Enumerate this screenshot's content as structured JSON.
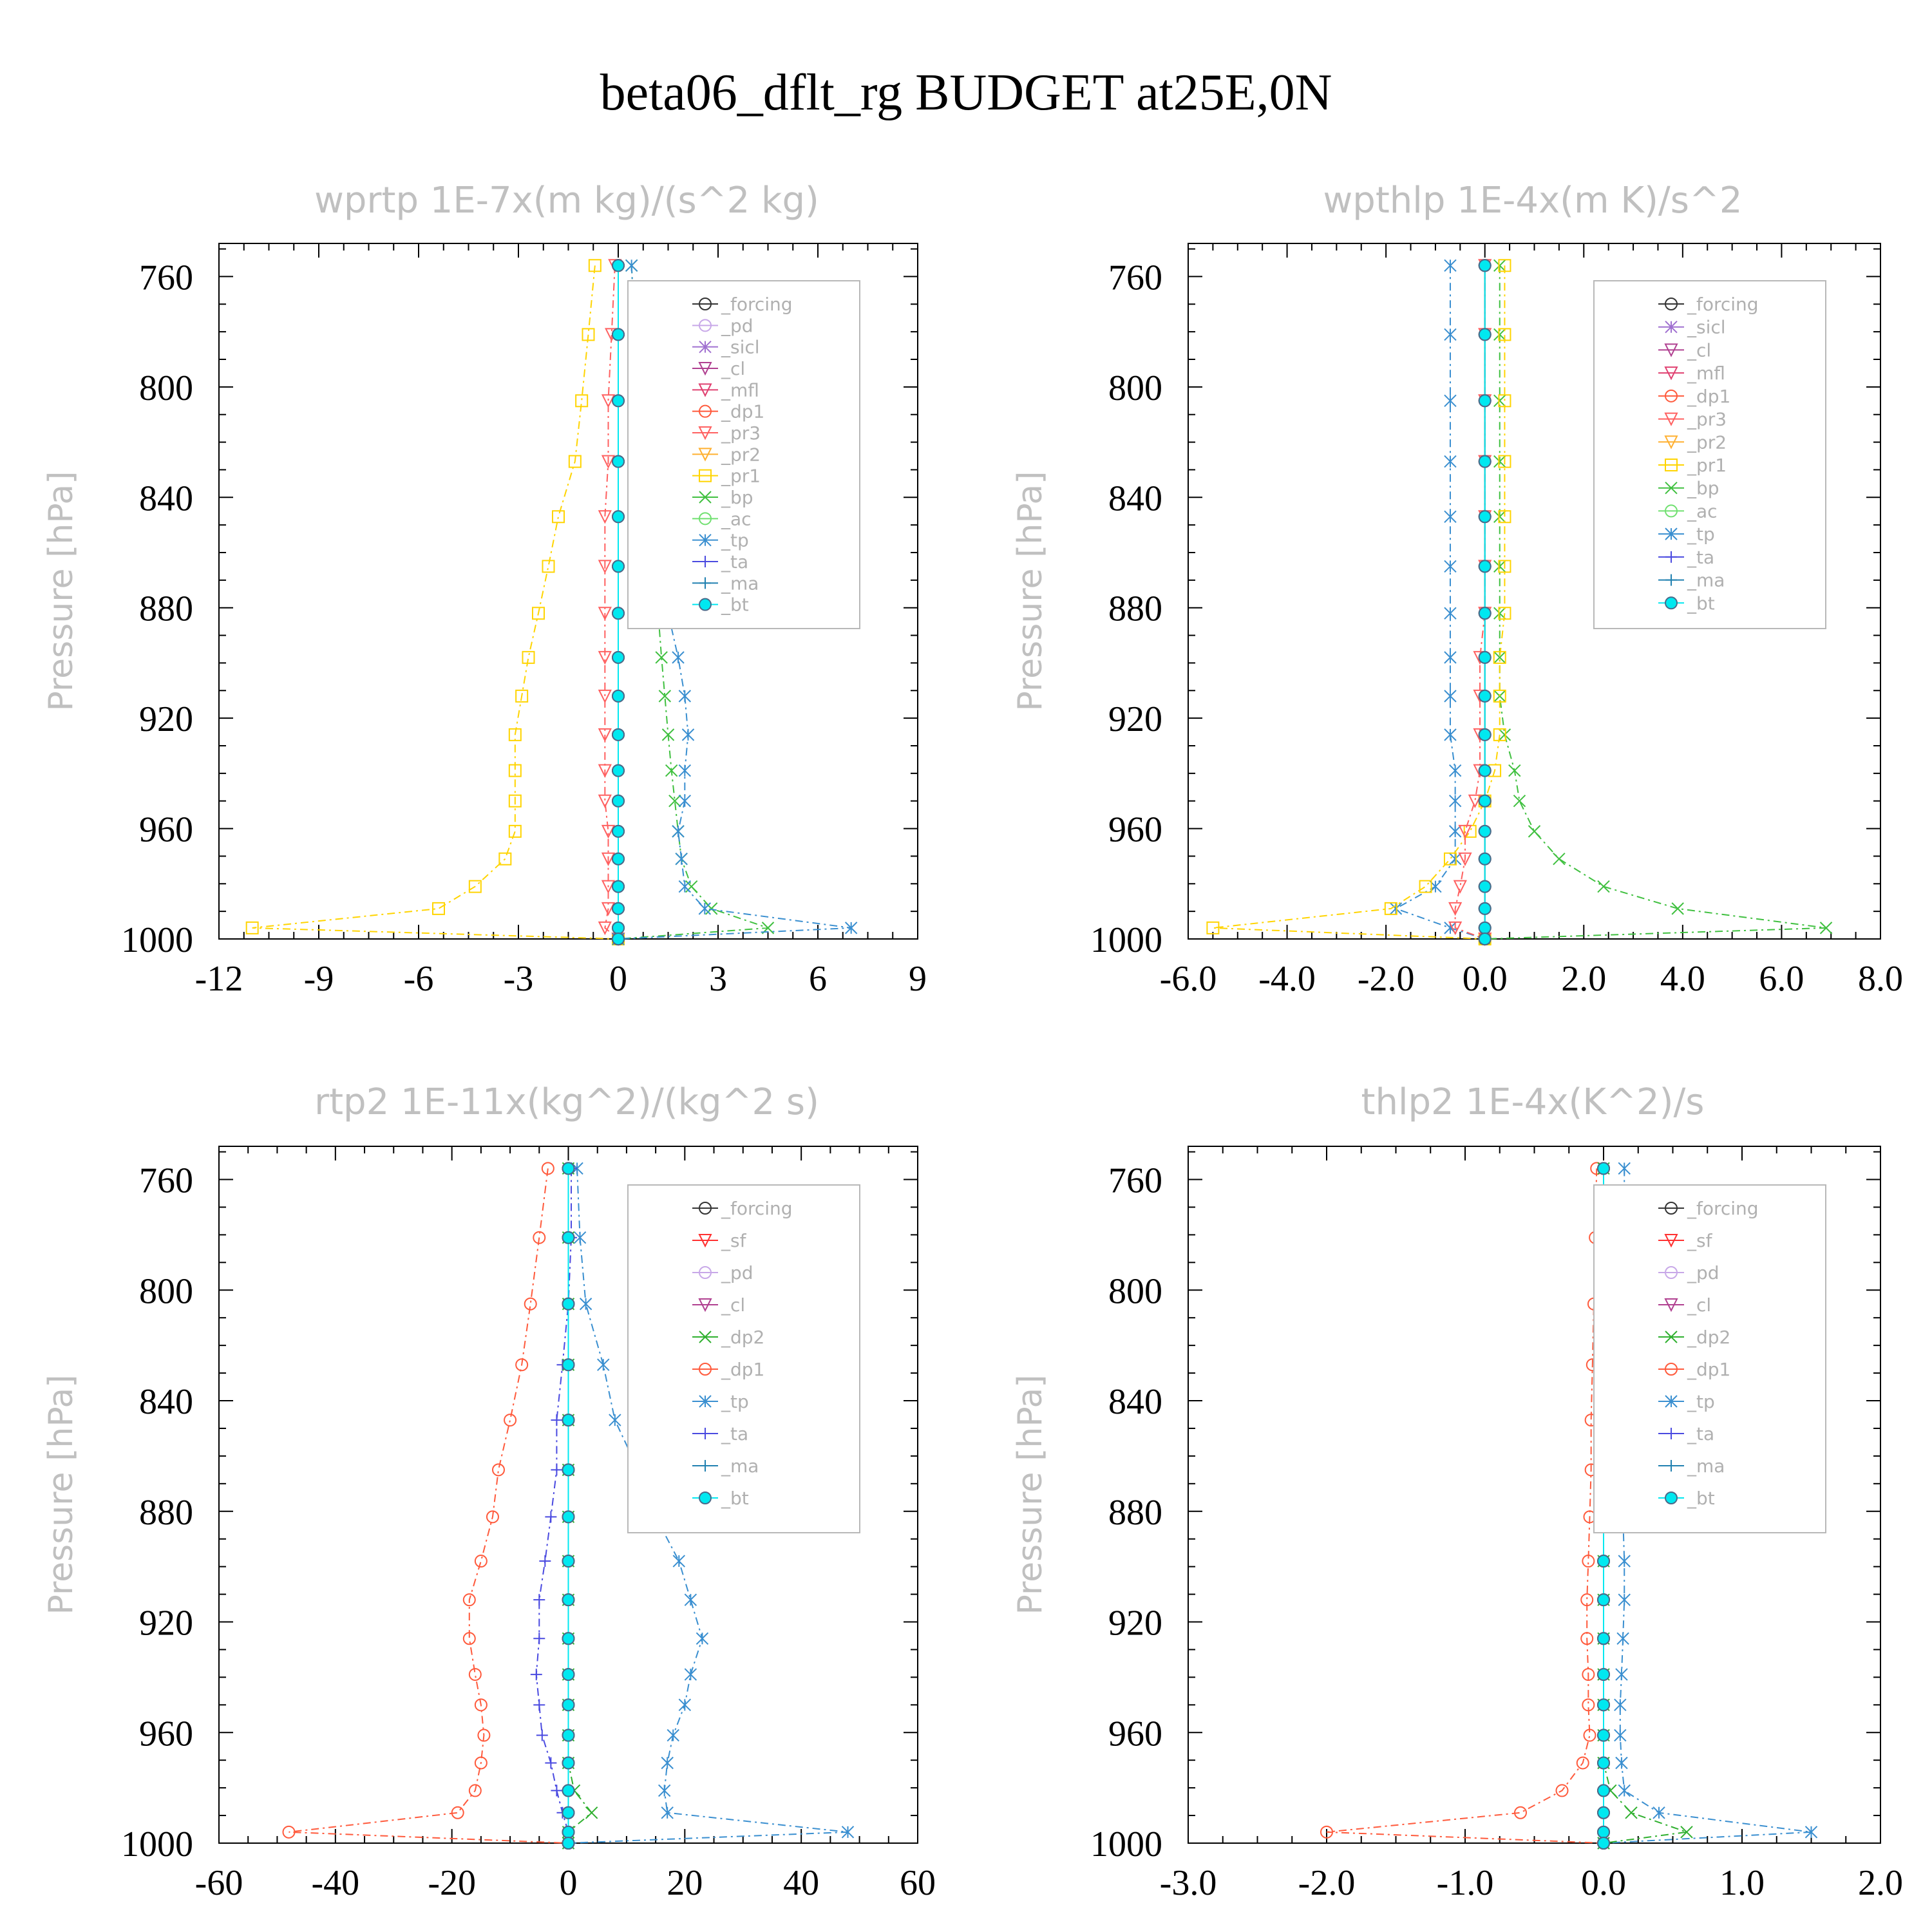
{
  "figure_title": "beta06_dflt_rg  BUDGET at25E,0N",
  "colors": {
    "_forcing": "#333333",
    "_pd": "#c8a8e8",
    "_sicl": "#a070d0",
    "_cl": "#b04090",
    "_mfl": "#e04070",
    "_dp1": "#ff5a3c",
    "_pr3": "#ff6060",
    "_pr2": "#ffb030",
    "_pr1": "#ffd400",
    "_bp": "#40c040",
    "_ac": "#70e070",
    "_tp": "#3a8fd0",
    "_ta": "#4a4ae0",
    "_ma": "#2080b0",
    "_bt": "#00e8f0",
    "_sf": "#ff3030",
    "_dp2": "#30b030",
    "axis": "#000000",
    "muted": "#c0c0c0"
  },
  "chart_data": [
    {
      "type": "line",
      "title": "wprtp   1E-7x(m kg)/(s^2 kg)",
      "ylabel": "Pressure [hPa]",
      "xlim": [
        -12,
        9
      ],
      "ylim": [
        1000,
        748
      ],
      "xticks": [
        "-12",
        "-9",
        "-6",
        "-3",
        "0",
        "3",
        "6",
        "9"
      ],
      "xtick_values": [
        -12,
        -9,
        -6,
        -3,
        0,
        3,
        6,
        9
      ],
      "yticks": [
        "760",
        "800",
        "840",
        "880",
        "920",
        "960",
        "1000"
      ],
      "yticks_values": [
        760,
        800,
        840,
        880,
        920,
        960,
        1000
      ],
      "legend": [
        "_forcing",
        "_pd",
        "_sicl",
        "_cl",
        "_mfl",
        "_dp1",
        "_pr3",
        "_pr2",
        "_pr1",
        "_bp",
        "_ac",
        "_tp",
        "_ta",
        "_ma",
        "_bt"
      ],
      "y": [
        756,
        781,
        805,
        827,
        847,
        865,
        882,
        898,
        912,
        926,
        939,
        950,
        961,
        971,
        981,
        989,
        996,
        1000
      ],
      "series": [
        {
          "name": "_pr1",
          "marker": "square",
          "values": [
            -0.7,
            -0.9,
            -1.1,
            -1.3,
            -1.8,
            -2.1,
            -2.4,
            -2.7,
            -2.9,
            -3.1,
            -3.1,
            -3.1,
            -3.1,
            -3.4,
            -4.3,
            -5.4,
            -11.0,
            0
          ]
        },
        {
          "name": "_pr3",
          "marker": "tri_down",
          "values": [
            -0.1,
            -0.2,
            -0.3,
            -0.3,
            -0.4,
            -0.4,
            -0.4,
            -0.4,
            -0.4,
            -0.4,
            -0.4,
            -0.4,
            -0.3,
            -0.3,
            -0.3,
            -0.3,
            -0.4,
            0
          ]
        },
        {
          "name": "_bp",
          "marker": "x",
          "values": [
            0.4,
            0.5,
            0.6,
            0.7,
            0.8,
            1.0,
            1.2,
            1.3,
            1.4,
            1.5,
            1.6,
            1.7,
            1.8,
            1.9,
            2.2,
            2.8,
            4.5,
            0
          ]
        },
        {
          "name": "_tp",
          "marker": "star",
          "values": [
            0.4,
            0.5,
            0.6,
            0.7,
            1.0,
            1.2,
            1.5,
            1.8,
            2.0,
            2.1,
            2.0,
            2.0,
            1.8,
            1.9,
            2.0,
            2.6,
            7.0,
            0
          ]
        },
        {
          "name": "_forcing",
          "marker": "circle",
          "values": [
            0,
            0,
            0,
            0,
            0,
            0,
            0,
            0,
            0,
            0,
            0,
            0,
            0,
            0,
            0,
            0,
            0,
            0
          ]
        },
        {
          "name": "_bt",
          "marker": "dot",
          "values": [
            0,
            0,
            0,
            0,
            0,
            0,
            0,
            0,
            0,
            0,
            0,
            0,
            0,
            0,
            0,
            0,
            0,
            0
          ]
        }
      ]
    },
    {
      "type": "line",
      "title": "wpthlp   1E-4x(m K)/s^2",
      "ylabel": "Pressure [hPa]",
      "xlim": [
        -6.0,
        8.0
      ],
      "ylim": [
        1000,
        748
      ],
      "xticks": [
        "-6.0",
        "-4.0",
        "-2.0",
        "0.0",
        "2.0",
        "4.0",
        "6.0",
        "8.0"
      ],
      "xtick_values": [
        -6,
        -4,
        -2,
        0,
        2,
        4,
        6,
        8
      ],
      "yticks": [
        "760",
        "800",
        "840",
        "880",
        "920",
        "960",
        "1000"
      ],
      "yticks_values": [
        760,
        800,
        840,
        880,
        920,
        960,
        1000
      ],
      "legend": [
        "_forcing",
        "_sicl",
        "_cl",
        "_mfl",
        "_dp1",
        "_pr3",
        "_pr2",
        "_pr1",
        "_bp",
        "_ac",
        "_tp",
        "_ta",
        "_ma",
        "_bt"
      ],
      "y": [
        756,
        781,
        805,
        827,
        847,
        865,
        882,
        898,
        912,
        926,
        939,
        950,
        961,
        971,
        981,
        989,
        996,
        1000
      ],
      "series": [
        {
          "name": "_tp",
          "marker": "star",
          "values": [
            -0.7,
            -0.7,
            -0.7,
            -0.7,
            -0.7,
            -0.7,
            -0.7,
            -0.7,
            -0.7,
            -0.7,
            -0.6,
            -0.6,
            -0.6,
            -0.6,
            -1.0,
            -1.8,
            -0.7,
            0
          ]
        },
        {
          "name": "_bp",
          "marker": "x",
          "values": [
            0.3,
            0.3,
            0.3,
            0.3,
            0.3,
            0.3,
            0.3,
            0.3,
            0.3,
            0.4,
            0.6,
            0.7,
            1.0,
            1.5,
            2.4,
            3.9,
            6.9,
            0
          ]
        },
        {
          "name": "_pr1",
          "marker": "square",
          "values": [
            0.4,
            0.4,
            0.4,
            0.4,
            0.4,
            0.4,
            0.4,
            0.3,
            0.3,
            0.3,
            0.2,
            0.0,
            -0.3,
            -0.7,
            -1.2,
            -1.9,
            -5.5,
            0
          ]
        },
        {
          "name": "_pr3",
          "marker": "tri_down",
          "values": [
            0,
            0,
            0,
            0,
            0,
            0,
            0,
            -0.1,
            -0.1,
            -0.1,
            -0.1,
            -0.2,
            -0.4,
            -0.4,
            -0.5,
            -0.6,
            -0.6,
            0
          ]
        },
        {
          "name": "_forcing",
          "marker": "circle",
          "values": [
            0,
            0,
            0,
            0,
            0,
            0,
            0,
            0,
            0,
            0,
            0,
            0,
            0,
            0,
            0,
            0,
            0,
            0
          ]
        },
        {
          "name": "_bt",
          "marker": "dot",
          "values": [
            0,
            0,
            0,
            0,
            0,
            0,
            0,
            0,
            0,
            0,
            0,
            0,
            0,
            0,
            0,
            0,
            0,
            0
          ]
        }
      ]
    },
    {
      "type": "line",
      "title": "rtp2   1E-11x(kg^2)/(kg^2 s)",
      "ylabel": "Pressure [hPa]",
      "xlim": [
        -60,
        60
      ],
      "ylim": [
        1000,
        748
      ],
      "xticks": [
        "-60",
        "-40",
        "-20",
        "0",
        "20",
        "40",
        "60"
      ],
      "xtick_values": [
        -60,
        -40,
        -20,
        0,
        20,
        40,
        60
      ],
      "yticks": [
        "760",
        "800",
        "840",
        "880",
        "920",
        "960",
        "1000"
      ],
      "yticks_values": [
        760,
        800,
        840,
        880,
        920,
        960,
        1000
      ],
      "legend": [
        "_forcing",
        "_sf",
        "_pd",
        "_cl",
        "_dp2",
        "_dp1",
        "_tp",
        "_ta",
        "_ma",
        "_bt"
      ],
      "y": [
        756,
        781,
        805,
        827,
        847,
        865,
        882,
        898,
        912,
        926,
        939,
        950,
        961,
        971,
        981,
        989,
        996,
        1000
      ],
      "series": [
        {
          "name": "_dp1",
          "marker": "circle",
          "values": [
            -3.5,
            -5,
            -6.5,
            -8,
            -10,
            -12,
            -13,
            -15,
            -17,
            -17,
            -16,
            -15,
            -14.5,
            -15,
            -16,
            -19,
            -48,
            0
          ]
        },
        {
          "name": "_tp",
          "marker": "star",
          "values": [
            1.5,
            2,
            3,
            6,
            8,
            12,
            15,
            19,
            21,
            23,
            21,
            20,
            18,
            17,
            16.5,
            17,
            48,
            0
          ]
        },
        {
          "name": "_ta",
          "marker": "plus",
          "values": [
            0.5,
            0.5,
            0,
            -1,
            -2,
            -2,
            -3,
            -4,
            -5,
            -5,
            -5.5,
            -5,
            -4.5,
            -3,
            -2,
            -1,
            0,
            0
          ]
        },
        {
          "name": "_dp2",
          "marker": "x",
          "values": [
            0,
            0,
            0,
            0,
            0,
            0,
            0,
            0,
            0,
            0,
            0,
            0,
            0,
            0,
            1,
            4,
            0,
            0
          ]
        },
        {
          "name": "_forcing",
          "marker": "circle",
          "values": [
            0,
            0,
            0,
            0,
            0,
            0,
            0,
            0,
            0,
            0,
            0,
            0,
            0,
            0,
            0,
            0,
            0,
            0
          ]
        },
        {
          "name": "_bt",
          "marker": "dot",
          "values": [
            0,
            0,
            0,
            0,
            0,
            0,
            0,
            0,
            0,
            0,
            0,
            0,
            0,
            0,
            0,
            0,
            0,
            0
          ]
        }
      ]
    },
    {
      "type": "line",
      "title": "thlp2   1E-4x(K^2)/s",
      "ylabel": "Pressure [hPa]",
      "xlim": [
        -3.0,
        2.0
      ],
      "ylim": [
        1000,
        748
      ],
      "xticks": [
        "-3.0",
        "-2.0",
        "-1.0",
        "0.0",
        "1.0",
        "2.0"
      ],
      "xtick_values": [
        -3,
        -2,
        -1,
        0,
        1,
        2
      ],
      "yticks": [
        "760",
        "800",
        "840",
        "880",
        "920",
        "960",
        "1000"
      ],
      "yticks_values": [
        760,
        800,
        840,
        880,
        920,
        960,
        1000
      ],
      "legend": [
        "_forcing",
        "_sf",
        "_pd",
        "_cl",
        "_dp2",
        "_dp1",
        "_tp",
        "_ta",
        "_ma",
        "_bt"
      ],
      "y": [
        756,
        781,
        805,
        827,
        847,
        865,
        882,
        898,
        912,
        926,
        939,
        950,
        961,
        971,
        981,
        989,
        996,
        1000
      ],
      "series": [
        {
          "name": "_dp1",
          "marker": "circle",
          "values": [
            -0.05,
            -0.06,
            -0.07,
            -0.08,
            -0.09,
            -0.09,
            -0.1,
            -0.11,
            -0.12,
            -0.12,
            -0.11,
            -0.11,
            -0.1,
            -0.15,
            -0.3,
            -0.6,
            -2.0,
            0
          ]
        },
        {
          "name": "_tp",
          "marker": "star",
          "values": [
            0.15,
            0.15,
            0.15,
            0.15,
            0.13,
            0.13,
            0.14,
            0.15,
            0.15,
            0.14,
            0.13,
            0.12,
            0.12,
            0.13,
            0.15,
            0.4,
            1.5,
            0
          ]
        },
        {
          "name": "_dp2",
          "marker": "x",
          "values": [
            0,
            0,
            0,
            0,
            0,
            0,
            0,
            0,
            0,
            0,
            0,
            0,
            0,
            0,
            0.05,
            0.2,
            0.6,
            0
          ]
        },
        {
          "name": "_forcing",
          "marker": "circle",
          "values": [
            0,
            0,
            0,
            0,
            0,
            0,
            0,
            0,
            0,
            0,
            0,
            0,
            0,
            0,
            0,
            0,
            0,
            0
          ]
        },
        {
          "name": "_bt",
          "marker": "dot",
          "values": [
            0,
            0,
            0,
            0,
            0,
            0,
            0,
            0,
            0,
            0,
            0,
            0,
            0,
            0,
            0,
            0,
            0,
            0
          ]
        }
      ]
    }
  ]
}
